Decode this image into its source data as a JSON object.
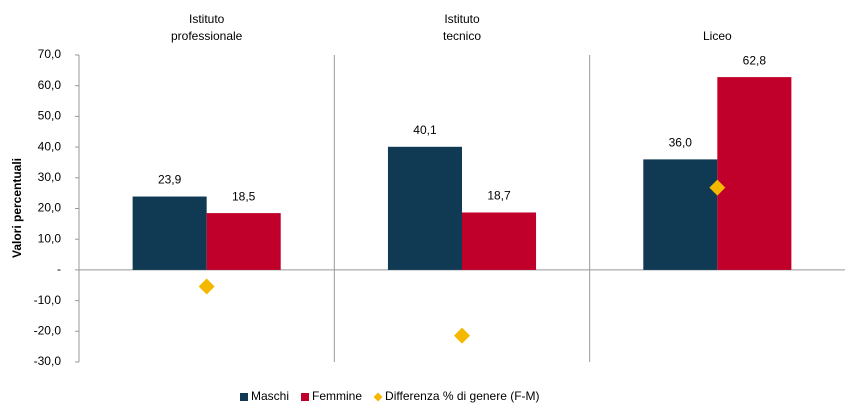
{
  "chart_data": {
    "type": "bar",
    "categories": [
      [
        "Istituto",
        "professionale"
      ],
      [
        "Istituto",
        "tecnico"
      ],
      [
        "Liceo"
      ]
    ],
    "y_label": "Valori percentuali",
    "series": [
      {
        "name": "Maschi",
        "type": "bar",
        "color": "#103a53",
        "values": [
          23.9,
          40.1,
          36.0
        ],
        "value_labels": [
          "23,9",
          "40,1",
          "36,0"
        ]
      },
      {
        "name": "Femmine",
        "type": "bar",
        "color": "#c0002a",
        "values": [
          18.5,
          18.7,
          62.8
        ],
        "value_labels": [
          "18,5",
          "18,7",
          "62,8"
        ]
      },
      {
        "name": "Differenza % di genere (F-M)",
        "type": "scatter",
        "marker": "diamond",
        "color": "#f5b800",
        "values": [
          -5.4,
          -21.4,
          26.8
        ]
      }
    ],
    "ylim": [
      -30,
      70
    ],
    "yticks": [
      {
        "value": -30,
        "label": "-30,0"
      },
      {
        "value": -20,
        "label": "-20,0"
      },
      {
        "value": -10,
        "label": "-10,0"
      },
      {
        "value": 0,
        "label": "-"
      },
      {
        "value": 10,
        "label": "10,0"
      },
      {
        "value": 20,
        "label": "20,0"
      },
      {
        "value": 30,
        "label": "30,0"
      },
      {
        "value": 40,
        "label": "40,0"
      },
      {
        "value": 50,
        "label": "50,0"
      },
      {
        "value": 60,
        "label": "60,0"
      },
      {
        "value": 70,
        "label": "70,0"
      }
    ],
    "legend": "bottom"
  }
}
